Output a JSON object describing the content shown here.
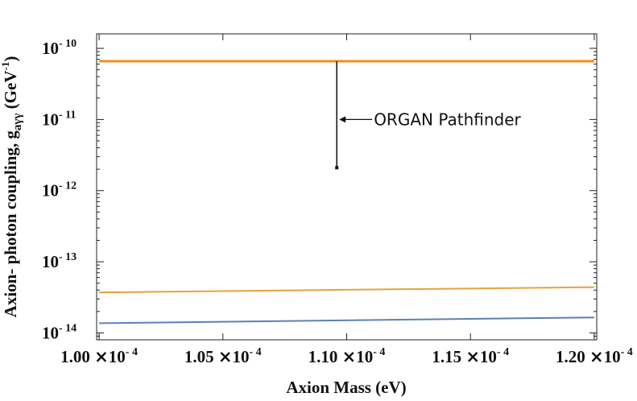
{
  "chart_data": {
    "type": "line",
    "title": "",
    "xlabel": "Axion Mass (eV)",
    "ylabel": "Axion- photon coupling, g",
    "ylabel_subscript": "aγγ",
    "ylabel_units": "(GeV",
    "ylabel_units_exp": "-1",
    "ylabel_units_close": ")",
    "x_scale": "linear",
    "y_scale": "log",
    "xlim": [
      9.99e-05,
      0.0001201
    ],
    "ylim": [
      8e-15,
      1.6e-10
    ],
    "grid": false,
    "x_ticks": [
      {
        "value": 0.0001,
        "mantissa": "1.00",
        "times": "×",
        "base": "10",
        "exp": "- 4"
      },
      {
        "value": 0.000105,
        "mantissa": "1.05",
        "times": "×",
        "base": "10",
        "exp": "- 4"
      },
      {
        "value": 0.00011,
        "mantissa": "1.10",
        "times": "×",
        "base": "10",
        "exp": "- 4"
      },
      {
        "value": 0.000115,
        "mantissa": "1.15",
        "times": "×",
        "base": "10",
        "exp": "- 4"
      },
      {
        "value": 0.00012,
        "mantissa": "1.20",
        "times": "×",
        "base": "10",
        "exp": "- 4"
      }
    ],
    "y_ticks": [
      {
        "value": 1e-14,
        "base": "10",
        "exp": "- 14"
      },
      {
        "value": 1e-13,
        "base": "10",
        "exp": "- 13"
      },
      {
        "value": 1e-12,
        "base": "10",
        "exp": "- 12"
      },
      {
        "value": 1e-11,
        "base": "10",
        "exp": "- 11"
      },
      {
        "value": 1e-10,
        "base": "10",
        "exp": "- 10"
      }
    ],
    "series": [
      {
        "color": "#f28e1c",
        "width": 3,
        "x": [
          0.0001,
          0.00012
        ],
        "y": [
          6.6e-11,
          6.6e-11
        ]
      },
      {
        "color": "#e8a23c",
        "width": 2,
        "x": [
          0.0001,
          0.00012
        ],
        "y": [
          3.7e-14,
          4.4e-14
        ]
      },
      {
        "color": "#5b80b8",
        "width": 2,
        "x": [
          0.0001,
          0.00012
        ],
        "y": [
          1.37e-14,
          1.65e-14
        ]
      }
    ],
    "annotations": [
      {
        "text": "ORGAN Pathfinder",
        "x": 0.0001096,
        "y_top": 6.6e-11,
        "y_bottom": 2.1e-12,
        "arrow_y": 1e-11
      }
    ]
  }
}
